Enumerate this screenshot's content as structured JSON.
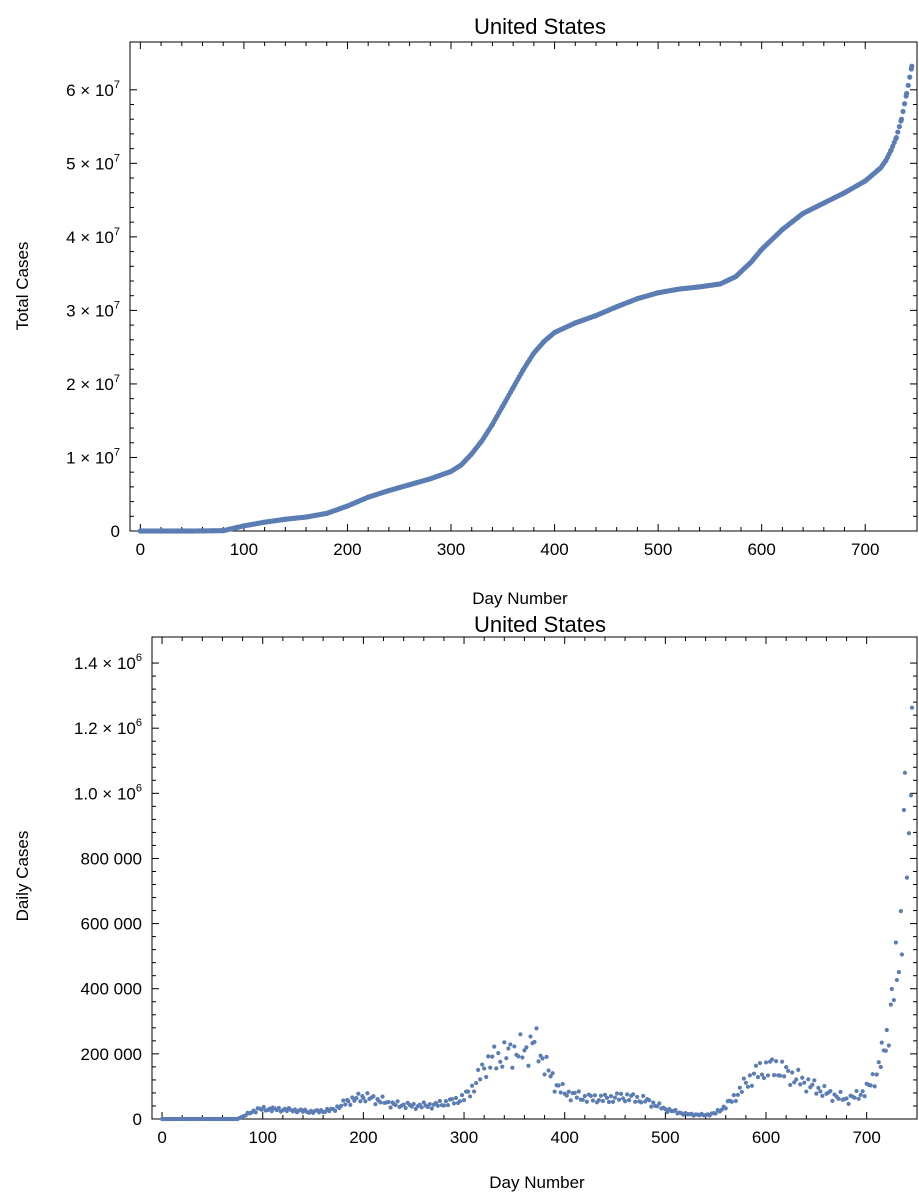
{
  "chart_data": [
    {
      "type": "scatter",
      "title": "United States",
      "xlabel": "Day Number",
      "ylabel": "Total Cases",
      "xlim": [
        -10,
        750
      ],
      "ylim": [
        0,
        66500000
      ],
      "x_ticks": [
        0,
        100,
        200,
        300,
        400,
        500,
        600,
        700
      ],
      "x_tick_labels": [
        "0",
        "100",
        "200",
        "300",
        "400",
        "500",
        "600",
        "700"
      ],
      "y_ticks": [
        {
          "value": 0,
          "base": "0",
          "exp": ""
        },
        {
          "value": 10000000,
          "base": "1 × 10",
          "exp": "7"
        },
        {
          "value": 20000000,
          "base": "2 × 10",
          "exp": "7"
        },
        {
          "value": 30000000,
          "base": "3 × 10",
          "exp": "7"
        },
        {
          "value": 40000000,
          "base": "4 × 10",
          "exp": "7"
        },
        {
          "value": 50000000,
          "base": "5 × 10",
          "exp": "7"
        },
        {
          "value": 60000000,
          "base": "6 × 10",
          "exp": "7"
        }
      ],
      "grid": false,
      "point_color": "#5B7DB3",
      "series_points": [
        [
          0,
          0
        ],
        [
          50,
          0
        ],
        [
          80,
          50000
        ],
        [
          100,
          700000
        ],
        [
          120,
          1200000
        ],
        [
          140,
          1600000
        ],
        [
          160,
          1900000
        ],
        [
          180,
          2400000
        ],
        [
          200,
          3400000
        ],
        [
          220,
          4600000
        ],
        [
          240,
          5500000
        ],
        [
          260,
          6300000
        ],
        [
          280,
          7100000
        ],
        [
          300,
          8100000
        ],
        [
          310,
          9000000
        ],
        [
          320,
          10500000
        ],
        [
          330,
          12300000
        ],
        [
          340,
          14500000
        ],
        [
          350,
          17000000
        ],
        [
          360,
          19500000
        ],
        [
          370,
          22000000
        ],
        [
          380,
          24200000
        ],
        [
          390,
          25800000
        ],
        [
          400,
          27000000
        ],
        [
          420,
          28300000
        ],
        [
          440,
          29300000
        ],
        [
          460,
          30500000
        ],
        [
          480,
          31600000
        ],
        [
          500,
          32400000
        ],
        [
          520,
          32900000
        ],
        [
          540,
          33200000
        ],
        [
          560,
          33600000
        ],
        [
          575,
          34600000
        ],
        [
          590,
          36600000
        ],
        [
          600,
          38300000
        ],
        [
          620,
          41000000
        ],
        [
          640,
          43200000
        ],
        [
          660,
          44600000
        ],
        [
          680,
          46000000
        ],
        [
          700,
          47600000
        ],
        [
          715,
          49400000
        ],
        [
          720,
          50400000
        ],
        [
          725,
          51800000
        ],
        [
          730,
          53500000
        ],
        [
          735,
          56000000
        ],
        [
          740,
          59500000
        ],
        [
          745,
          63200000
        ]
      ]
    },
    {
      "type": "scatter",
      "title": "United States",
      "xlabel": "Day Number",
      "ylabel": "Daily Cases",
      "xlim": [
        -10,
        750
      ],
      "ylim": [
        0,
        1480000
      ],
      "x_ticks": [
        0,
        100,
        200,
        300,
        400,
        500,
        600,
        700
      ],
      "x_tick_labels": [
        "0",
        "100",
        "200",
        "300",
        "400",
        "500",
        "600",
        "700"
      ],
      "y_ticks": [
        {
          "value": 0,
          "base": "0",
          "exp": ""
        },
        {
          "value": 200000,
          "base": "200 000",
          "exp": ""
        },
        {
          "value": 400000,
          "base": "400 000",
          "exp": ""
        },
        {
          "value": 600000,
          "base": "600 000",
          "exp": ""
        },
        {
          "value": 800000,
          "base": "800 000",
          "exp": ""
        },
        {
          "value": 1000000,
          "base": "1.0 × 10",
          "exp": "6"
        },
        {
          "value": 1200000,
          "base": "1.2 × 10",
          "exp": "6"
        },
        {
          "value": 1400000,
          "base": "1.4 × 10",
          "exp": "6"
        }
      ],
      "grid": false,
      "point_color": "#5B7DB3",
      "series_points": [
        [
          0,
          0
        ],
        [
          75,
          0
        ],
        [
          85,
          15000
        ],
        [
          95,
          30000
        ],
        [
          110,
          30000
        ],
        [
          130,
          27000
        ],
        [
          150,
          22000
        ],
        [
          170,
          28000
        ],
        [
          185,
          55000
        ],
        [
          200,
          68000
        ],
        [
          215,
          58000
        ],
        [
          230,
          45000
        ],
        [
          250,
          40000
        ],
        [
          270,
          42000
        ],
        [
          290,
          55000
        ],
        [
          300,
          65000
        ],
        [
          310,
          100000
        ],
        [
          320,
          160000
        ],
        [
          330,
          185000
        ],
        [
          340,
          195000
        ],
        [
          350,
          210000
        ],
        [
          360,
          205000
        ],
        [
          370,
          240000
        ],
        [
          380,
          170000
        ],
        [
          390,
          110000
        ],
        [
          400,
          80000
        ],
        [
          420,
          65000
        ],
        [
          440,
          62000
        ],
        [
          460,
          68000
        ],
        [
          480,
          58000
        ],
        [
          500,
          30000
        ],
        [
          520,
          15000
        ],
        [
          540,
          12000
        ],
        [
          550,
          18000
        ],
        [
          560,
          40000
        ],
        [
          570,
          70000
        ],
        [
          580,
          110000
        ],
        [
          590,
          140000
        ],
        [
          600,
          155000
        ],
        [
          610,
          160000
        ],
        [
          620,
          140000
        ],
        [
          630,
          125000
        ],
        [
          640,
          110000
        ],
        [
          650,
          95000
        ],
        [
          660,
          80000
        ],
        [
          670,
          70000
        ],
        [
          680,
          60000
        ],
        [
          690,
          70000
        ],
        [
          700,
          90000
        ],
        [
          710,
          140000
        ],
        [
          715,
          190000
        ],
        [
          720,
          250000
        ],
        [
          725,
          350000
        ],
        [
          730,
          480000
        ],
        [
          735,
          600000
        ],
        [
          738,
          940000
        ],
        [
          742,
          780000
        ],
        [
          745,
          1400000
        ]
      ]
    }
  ]
}
